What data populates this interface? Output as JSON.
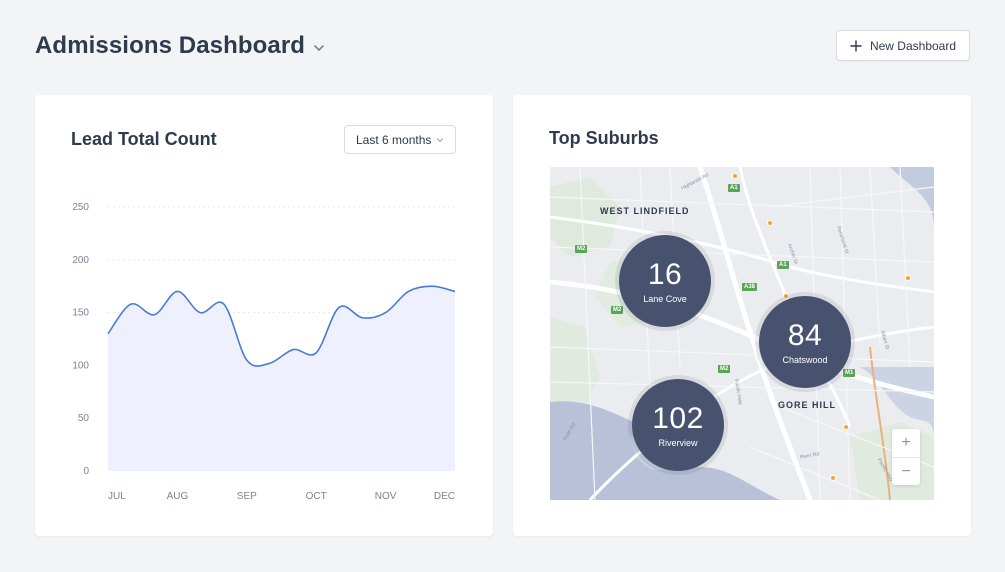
{
  "header": {
    "title": "Admissions Dashboard",
    "new_button_label": "New Dashboard"
  },
  "lead_card": {
    "title": "Lead Total Count",
    "range_label": "Last 6 months"
  },
  "chart_data": {
    "type": "area",
    "title": "Lead Total Count",
    "xlabel": "",
    "ylabel": "",
    "ylim": [
      0,
      250
    ],
    "yticks": [
      0,
      50,
      100,
      150,
      200,
      250
    ],
    "categories": [
      "JUL",
      "AUG",
      "SEP",
      "OCT",
      "NOV",
      "DEC"
    ],
    "x": [
      0,
      0.33,
      0.67,
      1.0,
      1.33,
      1.67,
      2.0,
      2.33,
      2.67,
      3.0,
      3.33,
      3.67,
      4.0,
      4.33,
      4.67,
      5.0
    ],
    "values": [
      130,
      158,
      148,
      170,
      150,
      158,
      105,
      102,
      115,
      112,
      155,
      145,
      150,
      170,
      175,
      170
    ],
    "grid": true,
    "series_color": "#4a7bd0",
    "fill_color": "#eef1fd"
  },
  "suburbs_card": {
    "title": "Top Suburbs",
    "map_labels": {
      "west_lindfield": "WEST LINDFIELD",
      "gore_hill": "GORE HILL"
    },
    "clusters": [
      {
        "count": "16",
        "name": "Lane Cove"
      },
      {
        "count": "84",
        "name": "Chatswood"
      },
      {
        "count": "102",
        "name": "Riverview"
      }
    ],
    "zoom_in": "+",
    "zoom_out": "−",
    "road_tags": [
      "A1",
      "A1",
      "M2",
      "M2",
      "A38",
      "M2",
      "M1",
      "A1"
    ],
    "streets": [
      "Highlands Rd",
      "Pacific Hwy",
      "Archer St",
      "Albert St",
      "River Rd",
      "Penshurst St",
      "Pacific Hwy",
      "Ryde Rd"
    ]
  },
  "colors": {
    "cluster": "#47536e",
    "background": "#f3f4f6",
    "map": "#e9eaee",
    "water": "#b6bfd6"
  }
}
